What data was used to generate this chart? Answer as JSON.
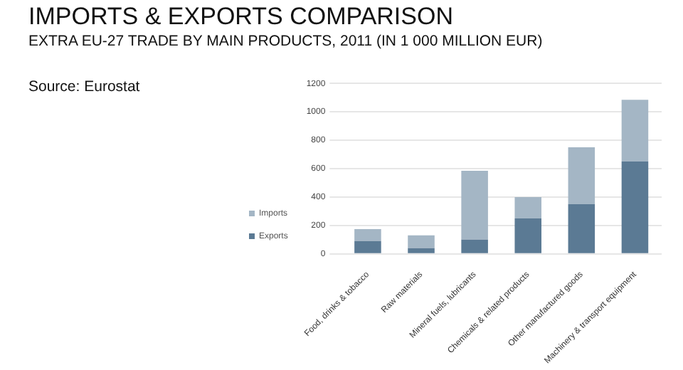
{
  "chart_data": {
    "type": "bar",
    "title": "IMPORTS & EXPORTS COMPARISON",
    "subtitle": "EXTRA EU-27 TRADE BY MAIN PRODUCTS, 2011 (IN 1 000 MILLION EUR)",
    "annotations": [
      "Source: Eurostat"
    ],
    "categories": [
      "Food, drinks & tobacco",
      "Raw materials",
      "Mineral fuels, lubricants",
      "Chemicals & related products",
      "Other manufactured goods",
      "Machinery & transport equipment"
    ],
    "series": [
      {
        "name": "Exports",
        "color": "#5b7a94",
        "values": [
          90,
          40,
          100,
          250,
          350,
          650
        ]
      },
      {
        "name": "Imports",
        "color": "#a4b6c5",
        "values": [
          85,
          90,
          485,
          150,
          400,
          435
        ]
      }
    ],
    "stacked": true,
    "ylim": [
      0,
      1200
    ],
    "yticks": [
      0,
      200,
      400,
      600,
      800,
      1000,
      1200
    ],
    "grid": "y",
    "legend": "left"
  }
}
